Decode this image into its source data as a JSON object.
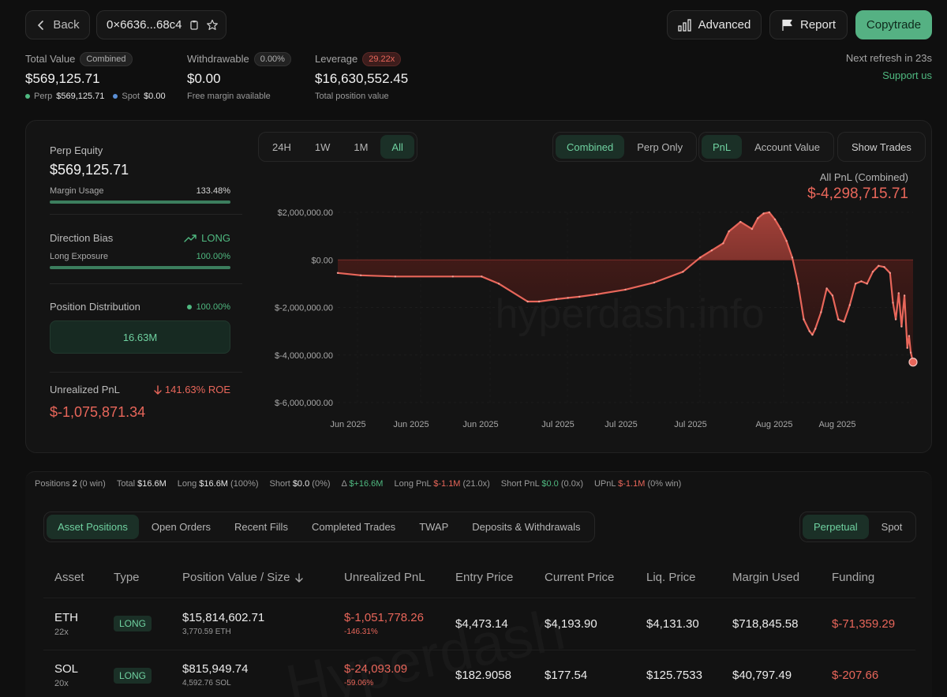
{
  "header": {
    "back_label": "Back",
    "address": "0×6636...68c4",
    "advanced_label": "Advanced",
    "report_label": "Report",
    "copytrade_label": "Copytrade",
    "refresh_text": "Next refresh in 23s",
    "support_label": "Support us"
  },
  "summary": {
    "total_value": {
      "label": "Total Value",
      "chip": "Combined",
      "value": "$569,125.71",
      "perp_label": "Perp",
      "perp_value": "$569,125.71",
      "spot_label": "Spot",
      "spot_value": "$0.00"
    },
    "withdrawable": {
      "label": "Withdrawable",
      "chip": "0.00%",
      "value": "$0.00",
      "sub": "Free margin available"
    },
    "leverage": {
      "label": "Leverage",
      "chip": "29.22x",
      "value": "$16,630,552.45",
      "sub": "Total position value"
    }
  },
  "left_panel": {
    "perp_equity_label": "Perp Equity",
    "perp_equity_value": "$569,125.71",
    "margin_usage_label": "Margin Usage",
    "margin_usage_value": "133.48%",
    "margin_usage_fill": 1.0,
    "direction_bias_label": "Direction Bias",
    "direction_bias_value": "LONG",
    "long_exposure_label": "Long Exposure",
    "long_exposure_value": "100.00%",
    "long_exposure_fill": 1.0,
    "position_distribution_label": "Position Distribution",
    "position_distribution_pct": "100.00%",
    "position_distribution_value": "16.63M",
    "unrealized_pnl_label": "Unrealized PnL",
    "roe_value": "141.63% ROE",
    "unrealized_pnl_value": "$-1,075,871.34"
  },
  "chart_controls": {
    "ranges": [
      "24H",
      "1W",
      "1M",
      "All"
    ],
    "active_range": "All",
    "modes": [
      "Combined",
      "Perp Only"
    ],
    "active_mode": "Combined",
    "metrics": [
      "PnL",
      "Account Value"
    ],
    "active_metric": "PnL",
    "show_trades_label": "Show Trades"
  },
  "chart_data": {
    "type": "area",
    "title": "All PnL (Combined)",
    "headline_value": "$-4,298,715.71",
    "watermark": "hyperdash.info",
    "y_ticks": [
      "$2,000,000.00",
      "$0.00",
      "$-2,000,000.00",
      "$-4,000,000.00",
      "$-6,000,000.00"
    ],
    "y_tick_values": [
      2000000,
      0,
      -2000000,
      -4000000,
      -6000000
    ],
    "x_ticks": [
      "Jun 2025",
      "Jun 2025",
      "Jun 2025",
      "Jul 2025",
      "Jul 2025",
      "Jul 2025",
      "Aug 2025",
      "Aug 2025"
    ],
    "ylim": [
      -6000000,
      2000000
    ],
    "series": [
      {
        "x": [
          0,
          4,
          10,
          20,
          25,
          28,
          33,
          35,
          38,
          40,
          42,
          45,
          50,
          55,
          60,
          63,
          65,
          67,
          68,
          70,
          72,
          73,
          74,
          75,
          76,
          77,
          78,
          79,
          80,
          81,
          82,
          82.5,
          83,
          84,
          85,
          86,
          87,
          88,
          89,
          90,
          91,
          92,
          93,
          94,
          95,
          96,
          96.5,
          97,
          97.5,
          98,
          98.5,
          99,
          99.3,
          99.6,
          100
        ],
        "values": [
          -550000,
          -650000,
          -700000,
          -700000,
          -700000,
          -1000000,
          -1750000,
          -1750000,
          -1650000,
          -1600000,
          -1550000,
          -1450000,
          -1250000,
          -950000,
          -500000,
          100000,
          400000,
          700000,
          1200000,
          1600000,
          1300000,
          1750000,
          1950000,
          2000000,
          1700000,
          1300000,
          800000,
          100000,
          -1000000,
          -2500000,
          -3000000,
          -3150000,
          -2900000,
          -2200000,
          -1200000,
          -1500000,
          -2500000,
          -2600000,
          -1900000,
          -1000000,
          -900000,
          -1000000,
          -500000,
          -250000,
          -300000,
          -550000,
          -1800000,
          -2500000,
          -1400000,
          -2800000,
          -1500000,
          -3700000,
          -3200000,
          -3900000,
          -4298715
        ]
      }
    ]
  },
  "stats_strip": {
    "positions_label": "Positions",
    "positions_value": "2",
    "positions_win": "(0 win)",
    "total_label": "Total",
    "total_value": "$16.6M",
    "long_label": "Long",
    "long_value": "$16.6M",
    "long_pct": "(100%)",
    "short_label": "Short",
    "short_value": "$0.0",
    "short_pct": "(0%)",
    "delta_label": "Δ",
    "delta_value": "$+16.6M",
    "long_pnl_label": "Long PnL",
    "long_pnl_value": "$-1.1M",
    "long_pnl_x": "(21.0x)",
    "short_pnl_label": "Short PnL",
    "short_pnl_value": "$0.0",
    "short_pnl_x": "(0.0x)",
    "upnl_label": "UPnL",
    "upnl_value": "$-1.1M",
    "upnl_win": "(0% win)"
  },
  "tabs": [
    "Asset Positions",
    "Open Orders",
    "Recent Fills",
    "Completed Trades",
    "TWAP",
    "Deposits & Withdrawals"
  ],
  "active_tab": "Asset Positions",
  "market_tabs": [
    "Perpetual",
    "Spot"
  ],
  "active_market_tab": "Perpetual",
  "table": {
    "headers": [
      "Asset",
      "Type",
      "Position Value / Size",
      "Unrealized PnL",
      "Entry Price",
      "Current Price",
      "Liq. Price",
      "Margin Used",
      "Funding"
    ],
    "rows": [
      {
        "asset": "ETH",
        "leverage": "22x",
        "type": "LONG",
        "value": "$15,814,602.71",
        "size": "3,770.59 ETH",
        "upnl": "$-1,051,778.26",
        "upnl_pct": "-146.31%",
        "entry": "$4,473.14",
        "current": "$4,193.90",
        "liq": "$4,131.30",
        "margin": "$718,845.58",
        "funding": "$-71,359.29"
      },
      {
        "asset": "SOL",
        "leverage": "20x",
        "type": "LONG",
        "value": "$815,949.74",
        "size": "4,592.76 SOL",
        "upnl": "$-24,093.09",
        "upnl_pct": "-59.06%",
        "entry": "$182.9058",
        "current": "$177.54",
        "liq": "$125.7533",
        "margin": "$40,797.49",
        "funding": "$-207.66"
      }
    ]
  },
  "colors": {
    "accent_green": "#55b183",
    "loss_red": "#e8665a",
    "background": "#0f0f0f"
  }
}
